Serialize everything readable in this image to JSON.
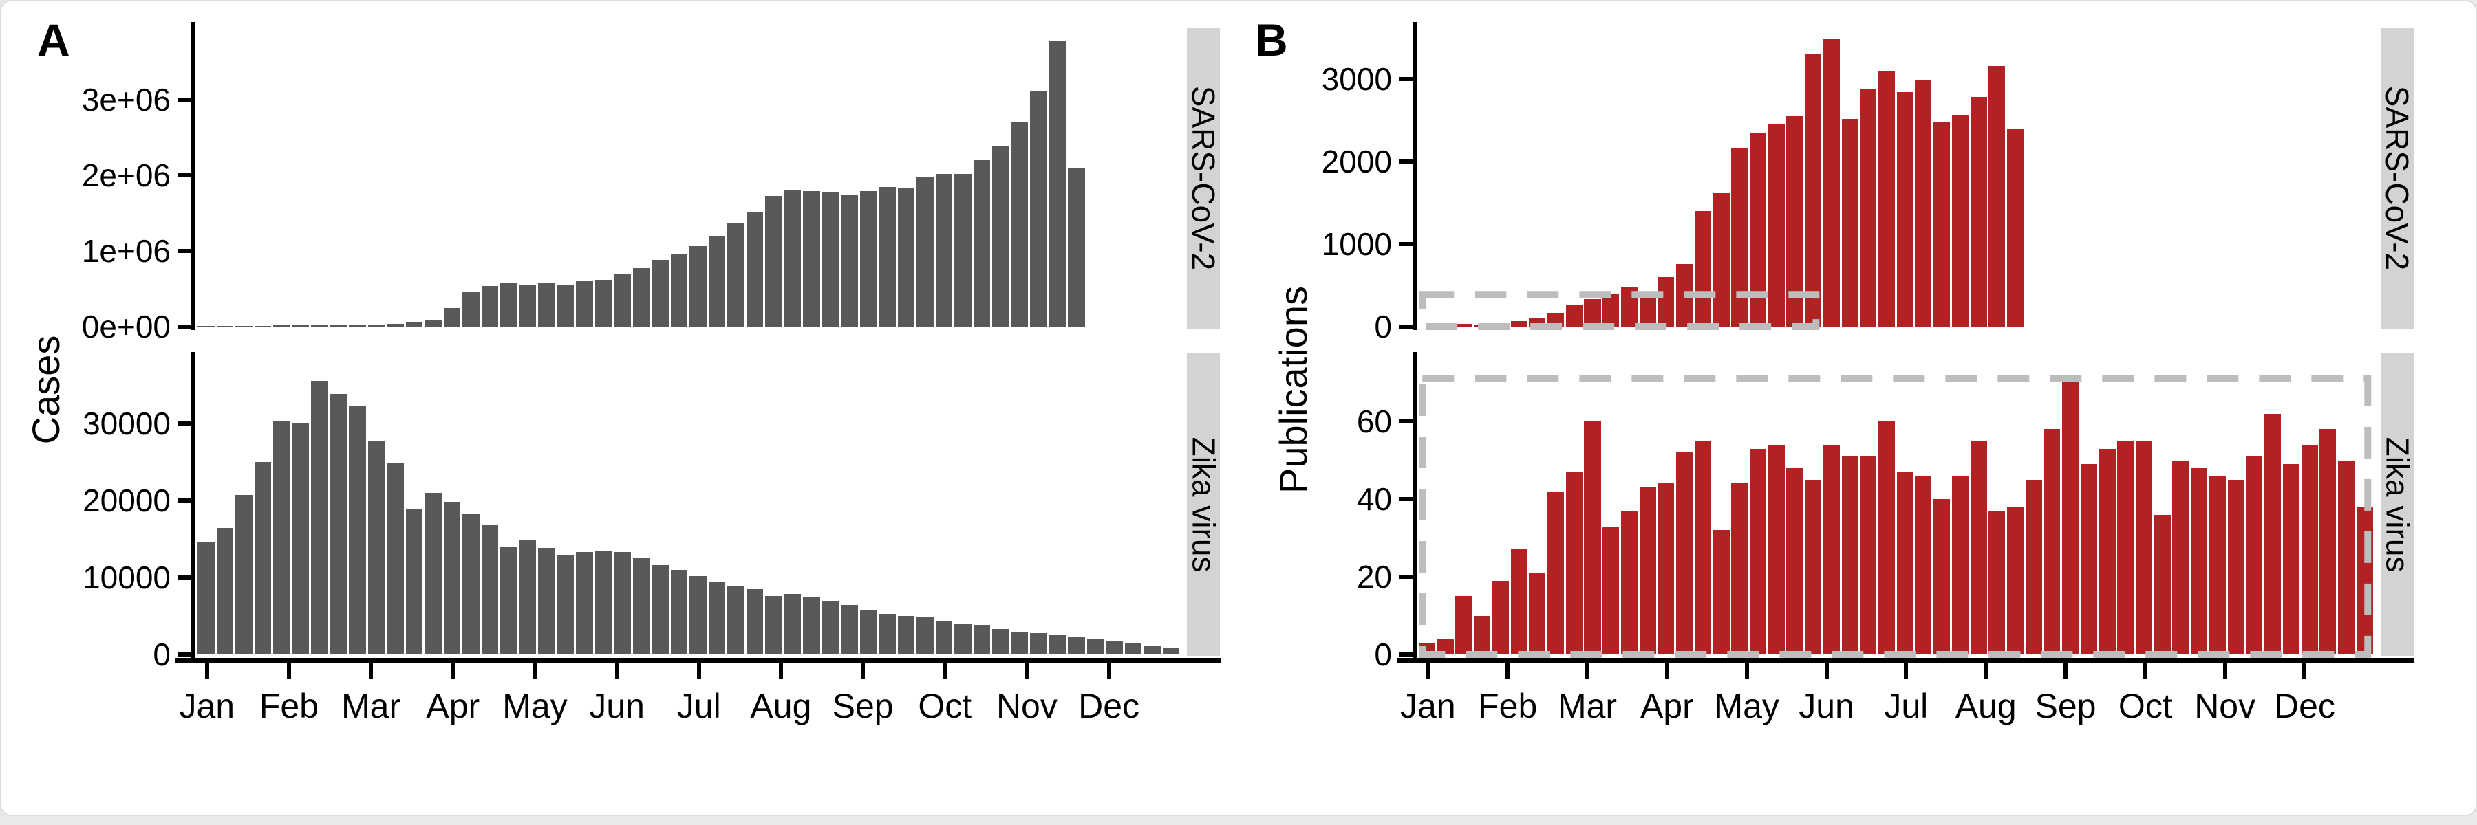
{
  "figure": {
    "panel_a_label": "A",
    "panel_b_label": "B",
    "cases_axis_title": "Cases",
    "publications_axis_title": "Publications"
  },
  "facets": {
    "top": "SARS-CoV-2",
    "bottom": "Zika virus"
  },
  "months": [
    "Jan",
    "Feb",
    "Mar",
    "Apr",
    "May",
    "Jun",
    "Jul",
    "Aug",
    "Sep",
    "Oct",
    "Nov",
    "Dec"
  ],
  "colors": {
    "cases_bar": "#595959",
    "publications_bar": "#B22222",
    "strip_bg": "#D3D3D3",
    "dashed_box": "#BDBDBD",
    "axis": "#000000"
  },
  "chart_data": [
    {
      "id": "sars-cov-2-cases",
      "type": "bar",
      "panel": "A",
      "facet": "SARS-CoV-2",
      "ylabel": "Cases",
      "x_unit": "week_of_year",
      "start_week": 0,
      "ylim": [
        0,
        3900000
      ],
      "yticks_values": [
        0,
        1000000,
        2000000,
        3000000
      ],
      "yticks_labels": [
        "0e+00",
        "1e+06",
        "2e+06",
        "3e+06"
      ],
      "values": [
        1000,
        2000,
        4000,
        8000,
        14000,
        18000,
        20000,
        18000,
        15000,
        25000,
        40000,
        60000,
        80000,
        250000,
        460000,
        540000,
        570000,
        555000,
        570000,
        555000,
        600000,
        620000,
        690000,
        770000,
        880000,
        960000,
        1060000,
        1200000,
        1360000,
        1510000,
        1730000,
        1800000,
        1790000,
        1770000,
        1740000,
        1790000,
        1850000,
        1840000,
        1970000,
        2020000,
        2020000,
        2200000,
        2390000,
        2700000,
        3110000,
        3780000,
        2100000
      ]
    },
    {
      "id": "zika-virus-cases",
      "type": "bar",
      "panel": "A",
      "facet": "Zika virus",
      "ylabel": "Cases",
      "x_unit": "week_of_year",
      "start_week": 0,
      "ylim": [
        0,
        37000
      ],
      "yticks_values": [
        0,
        10000,
        20000,
        30000
      ],
      "yticks_labels": [
        "0",
        "10000",
        "20000",
        "30000"
      ],
      "values": [
        14600,
        16400,
        20700,
        25000,
        30400,
        30100,
        35500,
        33800,
        32200,
        27800,
        24800,
        18800,
        21000,
        19800,
        18300,
        16800,
        14000,
        14800,
        13800,
        12900,
        13300,
        13400,
        13300,
        12500,
        11600,
        11000,
        10200,
        9500,
        8900,
        8500,
        7600,
        7900,
        7400,
        7000,
        6400,
        5800,
        5300,
        5000,
        4800,
        4300,
        4000,
        3800,
        3300,
        2900,
        2800,
        2500,
        2300,
        2000,
        1700,
        1400,
        1100,
        900
      ]
    },
    {
      "id": "sars-cov-2-publications",
      "type": "bar",
      "panel": "B",
      "facet": "SARS-CoV-2",
      "ylabel": "Publications",
      "x_unit": "week_of_year",
      "start_week": 2,
      "ylim": [
        0,
        3600
      ],
      "yticks_values": [
        0,
        1000,
        2000,
        3000
      ],
      "yticks_labels": [
        "0",
        "1000",
        "2000",
        "3000"
      ],
      "values": [
        30,
        15,
        35,
        70,
        100,
        170,
        270,
        330,
        400,
        480,
        390,
        600,
        760,
        1400,
        1620,
        2170,
        2350,
        2450,
        2550,
        3300,
        3480,
        2520,
        2880,
        3100,
        2840,
        2980,
        2480,
        2560,
        2780,
        3160,
        2400
      ],
      "annotation_box": {
        "week_range": [
          0.2,
          21.6
        ],
        "value_range": [
          0,
          390
        ]
      }
    },
    {
      "id": "zika-virus-publications",
      "type": "bar",
      "panel": "B",
      "facet": "Zika virus",
      "ylabel": "Publications",
      "x_unit": "week_of_year",
      "start_week": 0,
      "ylim": [
        0,
        75
      ],
      "yticks_values": [
        0,
        20,
        40,
        60
      ],
      "yticks_labels": [
        "0",
        "20",
        "40",
        "60"
      ],
      "values": [
        3,
        4,
        15,
        10,
        19,
        27,
        21,
        42,
        47,
        60,
        33,
        37,
        43,
        44,
        52,
        55,
        32,
        44,
        53,
        54,
        48,
        45,
        54,
        51,
        51,
        60,
        47,
        46,
        40,
        46,
        55,
        37,
        38,
        45,
        58,
        71,
        49,
        53,
        55,
        55,
        36,
        50,
        48,
        46,
        45,
        51,
        62,
        49,
        54,
        58,
        50,
        38
      ],
      "annotation_box": {
        "week_range": [
          0.2,
          51.6
        ],
        "value_range": [
          0,
          71
        ]
      }
    }
  ]
}
